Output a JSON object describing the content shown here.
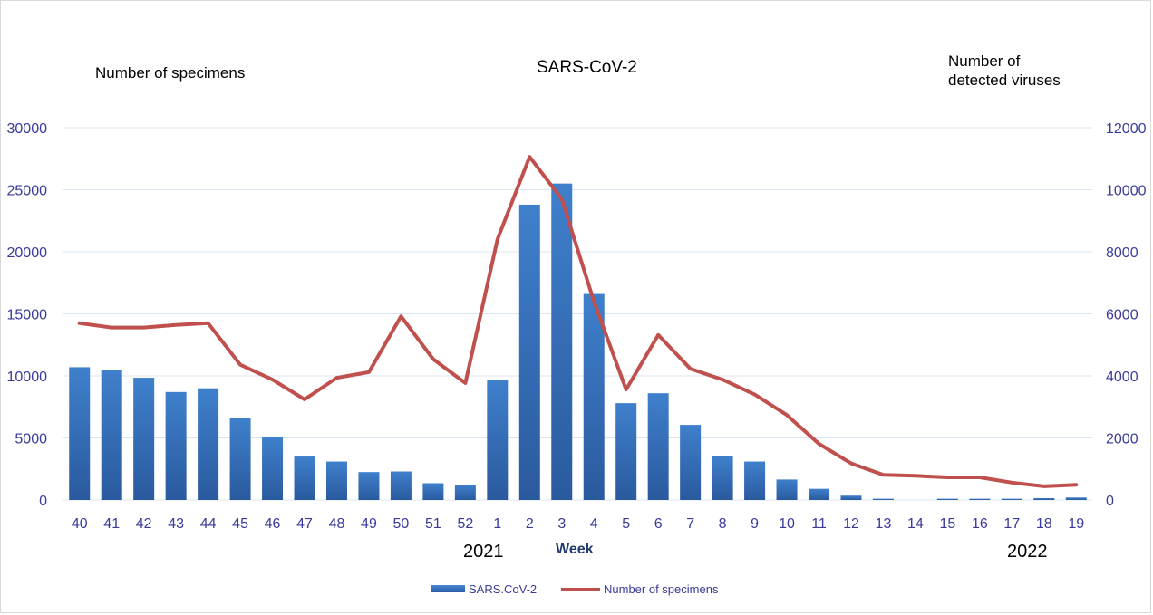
{
  "chart_data": {
    "type": "bar",
    "title": "SARS-CoV-2",
    "left_axis_label": "Number of specimens",
    "right_axis_label_lines": [
      "Number of",
      "detected viruses"
    ],
    "xlabel": "Week",
    "year_labels": [
      "2021",
      "2022"
    ],
    "categories": [
      "40",
      "41",
      "42",
      "43",
      "44",
      "45",
      "46",
      "47",
      "48",
      "49",
      "50",
      "51",
      "52",
      "1",
      "2",
      "3",
      "4",
      "5",
      "6",
      "7",
      "8",
      "9",
      "10",
      "11",
      "12",
      "13",
      "14",
      "15",
      "16",
      "17",
      "18",
      "19"
    ],
    "left_axis": {
      "ylim": [
        0,
        30000
      ],
      "ticks": [
        "0",
        "5000",
        "10000",
        "15000",
        "20000",
        "25000",
        "30000"
      ]
    },
    "right_axis": {
      "ylim": [
        0,
        12000
      ],
      "ticks": [
        "0",
        "2000",
        "4000",
        "6000",
        "8000",
        "10000",
        "12000"
      ]
    },
    "grid": true,
    "legend_position": "bottom",
    "series": [
      {
        "name": "SARS.CoV-2",
        "type": "bar",
        "axis": "left",
        "color": "#2e69b8",
        "values": [
          10700,
          10450,
          9850,
          8700,
          9000,
          6600,
          5050,
          3500,
          3100,
          2250,
          2300,
          1350,
          1200,
          9700,
          23800,
          25500,
          16600,
          7800,
          8600,
          6050,
          3550,
          3100,
          1650,
          900,
          350,
          100,
          0,
          100,
          100,
          100,
          150,
          200
        ]
      },
      {
        "name": "Number of specimens",
        "type": "line",
        "axis": "right",
        "color": "#c0504d",
        "values": [
          5700,
          5560,
          5560,
          5640,
          5700,
          4360,
          3880,
          3240,
          3940,
          4120,
          5920,
          4540,
          3770,
          8400,
          11060,
          9700,
          6400,
          3560,
          5320,
          4230,
          3880,
          3400,
          2740,
          1810,
          1180,
          810,
          780,
          730,
          730,
          560,
          440,
          490
        ]
      }
    ]
  }
}
